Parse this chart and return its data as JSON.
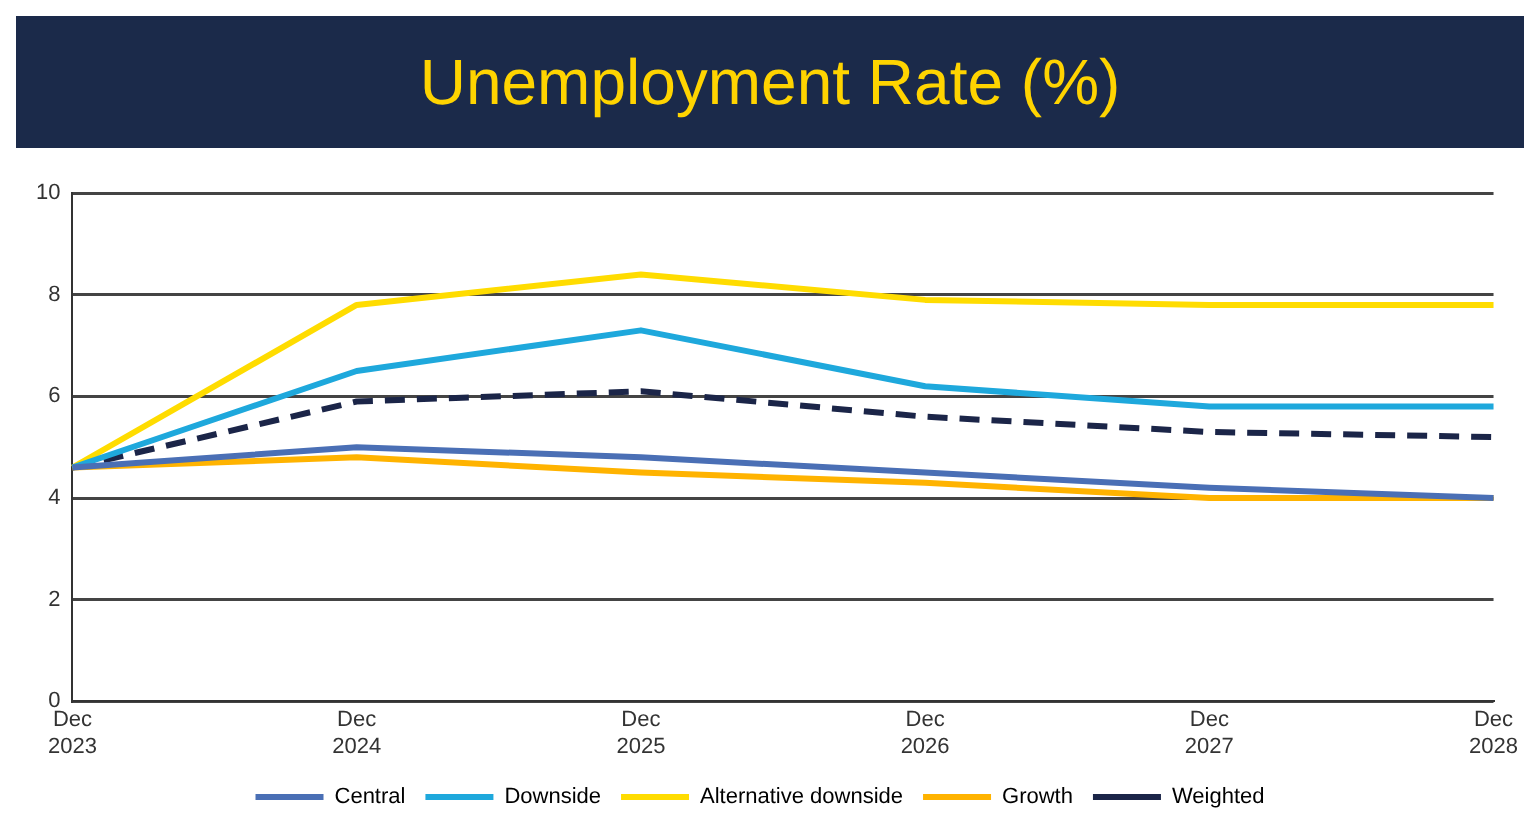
{
  "chart_data": {
    "type": "line",
    "title": "Unemployment Rate (%)",
    "categories": [
      "Dec 2023",
      "Dec 2024",
      "Dec 2025",
      "Dec 2026",
      "Dec 2027",
      "Dec 2028"
    ],
    "series": [
      {
        "name": "Central",
        "color": "#4a6fb5",
        "values": [
          4.6,
          5.0,
          4.8,
          4.5,
          4.2,
          4.0
        ]
      },
      {
        "name": "Downside",
        "color": "#1ea8dc",
        "values": [
          4.6,
          6.5,
          7.3,
          6.2,
          5.8,
          5.8
        ]
      },
      {
        "name": "Alternative downside",
        "color": "#ffdc00",
        "values": [
          4.6,
          7.8,
          8.4,
          7.9,
          7.8,
          7.8
        ]
      },
      {
        "name": "Growth",
        "color": "#ffb300",
        "values": [
          4.6,
          4.8,
          4.5,
          4.3,
          4.0,
          4.0
        ]
      },
      {
        "name": "Weighted",
        "color": "#1b2548",
        "line_style": "dashed",
        "values": [
          4.6,
          5.9,
          6.1,
          5.6,
          5.3,
          5.2
        ]
      }
    ],
    "ylim": [
      0,
      10
    ],
    "yticks": [
      0,
      2,
      4,
      6,
      8,
      10
    ],
    "grid": "y",
    "legend": "bottom",
    "marker": "none",
    "line_style": "solid"
  }
}
